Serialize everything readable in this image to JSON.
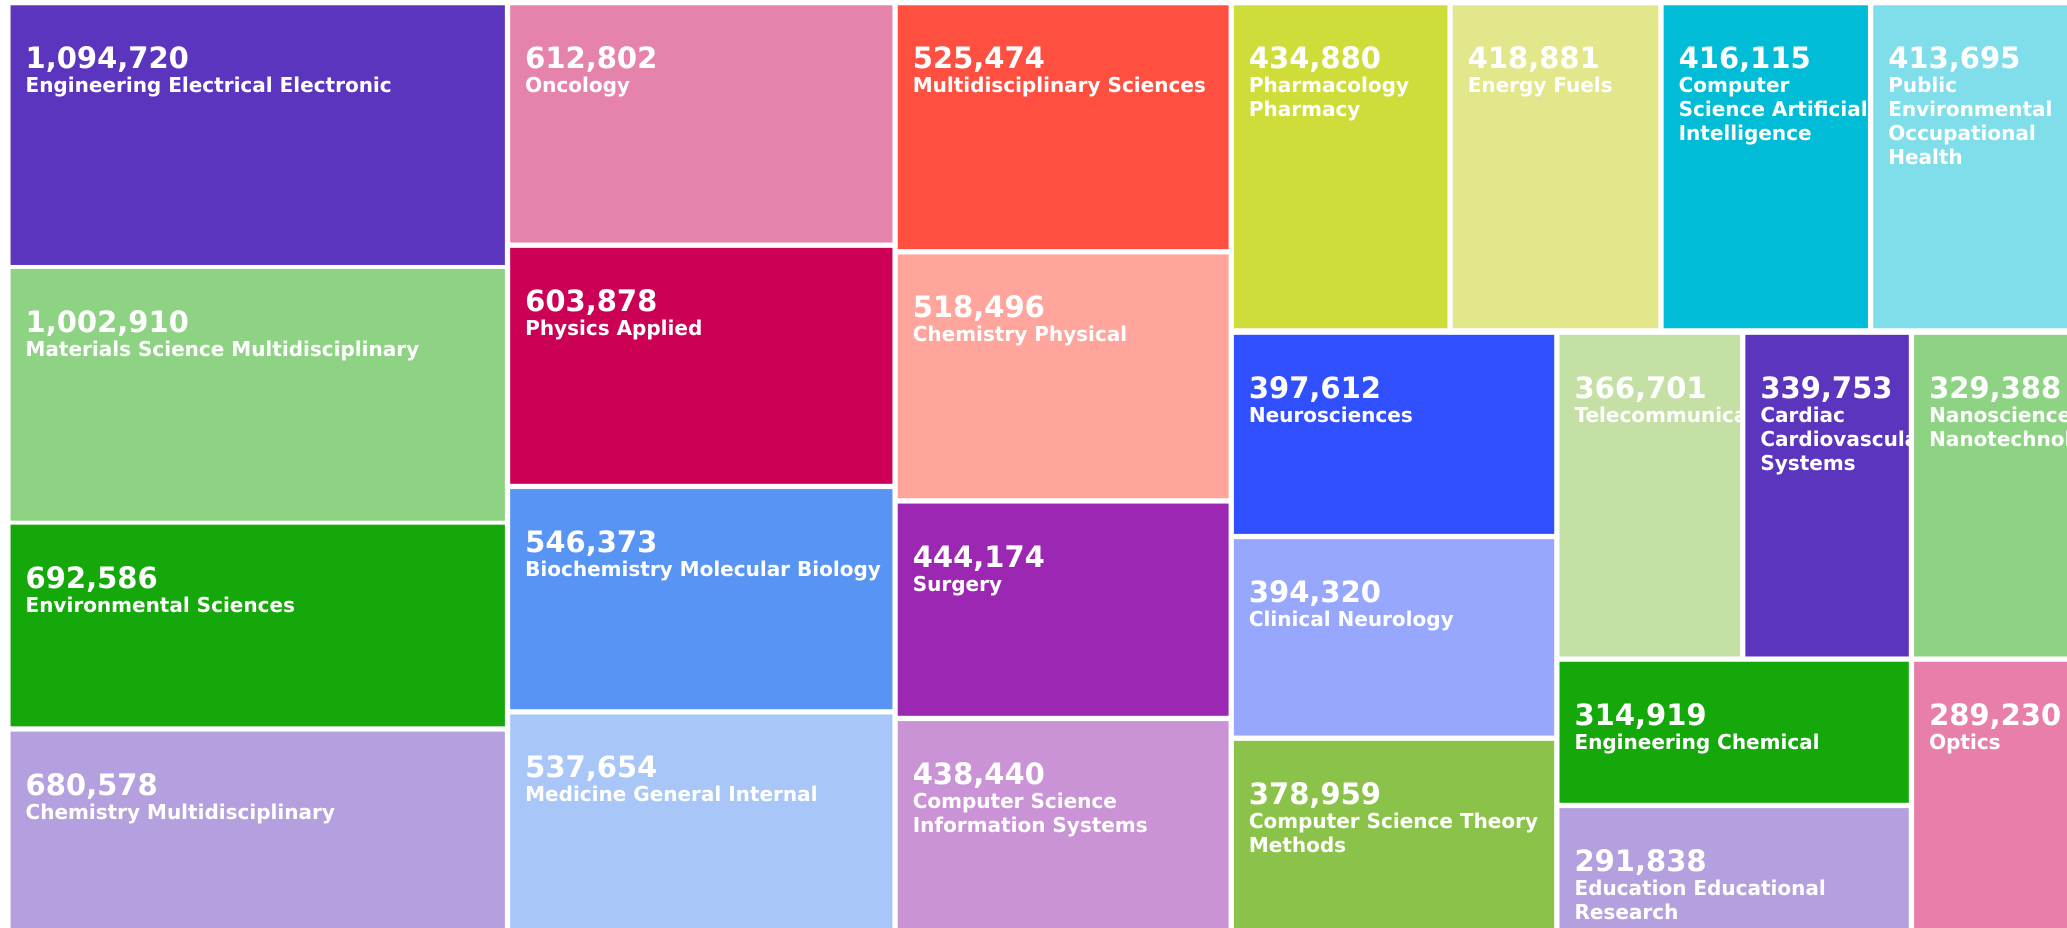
{
  "chart_data": {
    "type": "treemap",
    "labels": [
      "Engineering Electrical Electronic",
      "Materials Science Multidisciplinary",
      "Environmental Sciences",
      "Chemistry Multidisciplinary",
      "Oncology",
      "Physics Applied",
      "Biochemistry Molecular Biology",
      "Medicine General Internal",
      "Multidisciplinary Sciences",
      "Chemistry Physical",
      "Surgery",
      "Computer Science Information Systems",
      "Pharmacology Pharmacy",
      "Energy Fuels",
      "Computer Science Artificial Intelligence",
      "Public Environmental Occupational Health",
      "Neurosciences",
      "Clinical Neurology",
      "Computer Science Theory Methods",
      "Telecommunications",
      "Cardiac Cardiovascular Systems",
      "Nanoscience Nanotechnology",
      "Engineering Chemical",
      "Education Educational Research",
      "Optics"
    ],
    "values": [
      1094720,
      1002910,
      692586,
      680578,
      612802,
      603878,
      546373,
      537654,
      525474,
      518496,
      444174,
      438440,
      434880,
      418881,
      416115,
      413695,
      397612,
      394320,
      378959,
      366701,
      339753,
      329388,
      314919,
      291838,
      289230
    ],
    "value_labels": [
      "1,094,720",
      "1,002,910",
      "692,586",
      "680,578",
      "612,802",
      "603,878",
      "546,373",
      "537,654",
      "525,474",
      "518,496",
      "444,174",
      "438,440",
      "434,880",
      "418,881",
      "416,115",
      "413,695",
      "397,612",
      "394,320",
      "378,959",
      "366,701",
      "339,753",
      "329,388",
      "314,919",
      "291,838",
      "289,230"
    ],
    "colors": [
      "#5c35be",
      "#8dd383",
      "#14a80a",
      "#b49fdf",
      "#e683ad",
      "#cc0055",
      "#5794f4",
      "#a8c7f8",
      "#ff4f40",
      "#ffa59c",
      "#9b27b3",
      "#ca93d6",
      "#cfdd3b",
      "#e1e78a",
      "#00bcd6",
      "#80deea",
      "#304ffe",
      "#97a7fd",
      "#8bc34a",
      "#c5e0a5",
      "#5c35be",
      "#8dd383",
      "#14a80a",
      "#b49fdf",
      "#e77faa"
    ]
  }
}
